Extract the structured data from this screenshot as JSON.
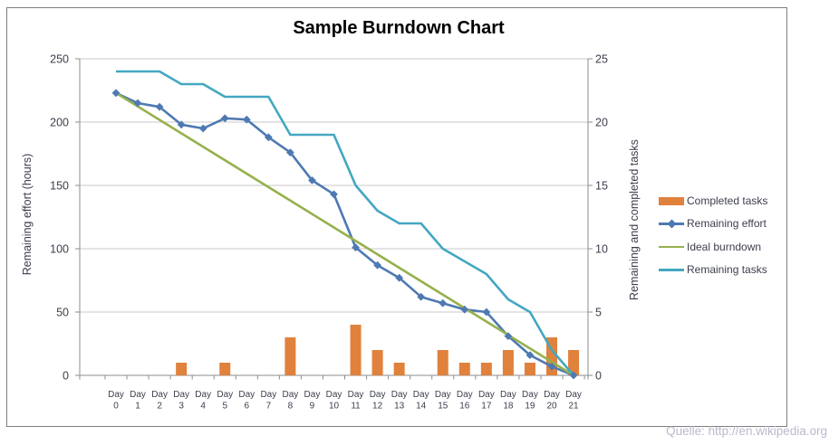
{
  "title": "Sample Burndown Chart",
  "source_note": "Quelle: http://en.wikipedia.org",
  "chart_data": {
    "type": "combo bar+line",
    "categories": [
      "Day 0",
      "Day 1",
      "Day 2",
      "Day 3",
      "Day 4",
      "Day 5",
      "Day 6",
      "Day 7",
      "Day 8",
      "Day 9",
      "Day 10",
      "Day 11",
      "Day 12",
      "Day 13",
      "Day 14",
      "Day 15",
      "Day 16",
      "Day 17",
      "Day 18",
      "Day 19",
      "Day 20",
      "Day 21"
    ],
    "category_label_line1": "Day",
    "series": [
      {
        "name": "Completed tasks",
        "type": "bar",
        "axis": "right",
        "color": "#E0813C",
        "values": [
          0,
          0,
          0,
          1,
          0,
          1,
          0,
          0,
          3,
          0,
          0,
          4,
          2,
          1,
          0,
          2,
          1,
          1,
          2,
          1,
          3,
          2
        ]
      },
      {
        "name": "Remaining effort",
        "type": "line",
        "marker": "diamond",
        "axis": "left",
        "color": "#4E79B2",
        "values": [
          223,
          215,
          212,
          198,
          195,
          203,
          202,
          188,
          176,
          154,
          143,
          101,
          87,
          77,
          62,
          57,
          52,
          50,
          31,
          16,
          7,
          0
        ]
      },
      {
        "name": "Ideal burndown",
        "type": "line",
        "axis": "left",
        "color": "#96B14D",
        "shape": "linear",
        "start": 223,
        "end": 0
      },
      {
        "name": "Remaining tasks",
        "type": "line",
        "axis": "right",
        "color": "#44A7C1",
        "values": [
          24,
          24,
          24,
          23,
          23,
          22,
          22,
          22,
          19,
          19,
          19,
          15,
          13,
          12,
          12,
          10,
          9,
          8,
          6,
          5,
          2,
          0
        ]
      }
    ],
    "left_axis": {
      "label": "Remaining effort (hours)",
      "min": 0,
      "max": 250,
      "ticks": [
        0,
        50,
        100,
        150,
        200,
        250
      ]
    },
    "right_axis": {
      "label": "Remaining and completed tasks",
      "min": 0,
      "max": 25,
      "ticks": [
        0,
        5,
        10,
        15,
        20,
        25
      ]
    },
    "gridlines": "horizontal",
    "legend_position": "right",
    "style_colors": {
      "gridline": "#C9C9C9",
      "axis_line": "#8E8E8E",
      "tick_text": "#3B3E4C",
      "figure_border": "#7F7F7F"
    }
  }
}
